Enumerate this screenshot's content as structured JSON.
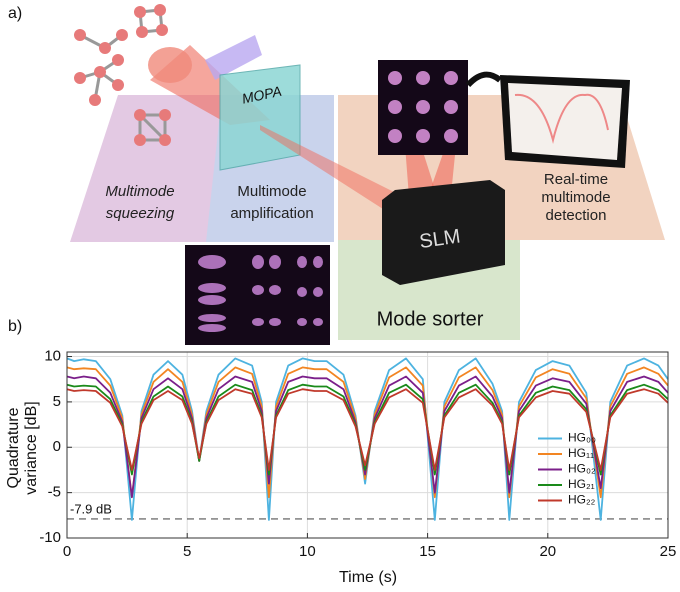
{
  "diagram": {
    "panel_label": "a)",
    "labels": {
      "mopa": "MOPA",
      "squeezing": [
        "Multimode",
        "squeezing"
      ],
      "amplification": [
        "Multimode",
        "amplification"
      ],
      "detection": [
        "Real-time",
        "multimode",
        "detection"
      ],
      "slm": "SLM",
      "sorter": "Mode sorter"
    }
  },
  "chart_data": {
    "type": "line",
    "panel_label": "b)",
    "x_label": "Time (s)",
    "y_label": [
      "Quadrature",
      "variance [dB]"
    ],
    "x": [
      0,
      0.3,
      0.7,
      1.2,
      1.8,
      2.3,
      2.7,
      3.1,
      3.6,
      4.2,
      4.8,
      5.2,
      5.5,
      5.8,
      6.3,
      7.0,
      7.7,
      8.1,
      8.4,
      8.7,
      9.2,
      9.8,
      10.3,
      10.8,
      11.5,
      12.0,
      12.4,
      12.8,
      13.4,
      14.1,
      14.8,
      15.3,
      15.7,
      16.3,
      17.0,
      17.7,
      18.1,
      18.4,
      18.8,
      19.5,
      20.2,
      20.9,
      21.6,
      22.2,
      22.6,
      23.3,
      24.0,
      24.6,
      25.0
    ],
    "series": [
      {
        "name": "HG₀₀",
        "color": "#4db3e0",
        "values": [
          9.8,
          9.5,
          9.7,
          9.5,
          7.5,
          3.5,
          -8,
          4,
          8,
          9.5,
          8,
          4,
          -1.5,
          4,
          8,
          9.8,
          9,
          5,
          -8,
          5,
          9,
          9.8,
          9.5,
          9.5,
          8,
          3.5,
          -4,
          4,
          8.5,
          9.8,
          7.5,
          -8,
          5,
          8.5,
          9.8,
          7,
          4,
          -8,
          5,
          8.5,
          9.5,
          9,
          6,
          -8,
          5,
          9,
          9.8,
          9,
          7.5
        ]
      },
      {
        "name": "HG₁₁",
        "color": "#f28522",
        "values": [
          8.8,
          8.6,
          8.7,
          8.6,
          6.8,
          3.2,
          -5.5,
          3.6,
          7.2,
          8.6,
          7.2,
          3.6,
          -1.5,
          3.6,
          7.2,
          8.8,
          8.1,
          4.5,
          -5.5,
          4.5,
          8.1,
          8.8,
          8.6,
          8.6,
          7.2,
          3.2,
          -3.5,
          3.6,
          7.7,
          8.8,
          6.8,
          -5.5,
          4.5,
          7.7,
          8.8,
          6.3,
          3.6,
          -5.5,
          4.5,
          7.7,
          8.6,
          8.1,
          5.4,
          -5.5,
          4.5,
          8.1,
          8.8,
          8.1,
          6.8
        ]
      },
      {
        "name": "HG₀₂",
        "color": "#7b1f8a",
        "values": [
          7.8,
          7.6,
          7.8,
          7.6,
          6,
          2.8,
          -5.5,
          3.2,
          6.4,
          7.6,
          6.4,
          3.2,
          -1.5,
          3.2,
          6.4,
          7.8,
          7.2,
          4,
          -4,
          4,
          7.2,
          7.8,
          7.6,
          7.6,
          6.4,
          2.8,
          -3,
          3.2,
          6.8,
          7.8,
          6,
          -5,
          4,
          6.8,
          7.8,
          5.6,
          3.2,
          -5,
          4,
          6.8,
          7.6,
          7.2,
          4.8,
          -4.5,
          4,
          7.2,
          7.8,
          7.2,
          6
        ]
      },
      {
        "name": "HG₂₁",
        "color": "#1a8a1a",
        "values": [
          6.9,
          6.7,
          6.8,
          6.7,
          5.3,
          2.5,
          -3,
          2.8,
          5.6,
          6.7,
          5.6,
          2.8,
          -1.5,
          2.8,
          5.6,
          6.9,
          6.3,
          3.5,
          -3,
          3.5,
          6.3,
          6.9,
          6.7,
          6.7,
          5.6,
          2.5,
          -2.5,
          2.8,
          6,
          6.9,
          5.3,
          -3,
          3.5,
          6,
          6.9,
          4.9,
          2.8,
          -3,
          3.5,
          6,
          6.7,
          6.3,
          4.2,
          -3,
          3.5,
          6.3,
          6.9,
          6.3,
          5.3
        ]
      },
      {
        "name": "HG₂₂",
        "color": "#c0392b",
        "values": [
          6.4,
          6.2,
          6.3,
          6.2,
          4.9,
          2.3,
          -2.5,
          2.6,
          5.2,
          6.2,
          5.2,
          2.6,
          -1.2,
          2.6,
          5.2,
          6.4,
          5.9,
          3.3,
          -2.5,
          3.3,
          5.9,
          6.4,
          6.2,
          6.2,
          5.2,
          2.3,
          -2,
          2.6,
          5.5,
          6.4,
          4.9,
          -2.5,
          3.3,
          5.5,
          6.4,
          4.6,
          2.6,
          -2.5,
          3.3,
          5.5,
          6.2,
          5.9,
          3.9,
          -2.5,
          3.3,
          5.9,
          6.4,
          5.9,
          4.9
        ]
      }
    ],
    "xlim": [
      0,
      25
    ],
    "ylim": [
      -10,
      10.5
    ],
    "xticks": [
      0,
      5,
      10,
      15,
      20,
      25
    ],
    "yticks": [
      -10,
      -5,
      0,
      5,
      10
    ],
    "grid": true,
    "legend": "lower right",
    "reference_line": {
      "value": -7.9,
      "label": "-7.9 dB",
      "color": "#555555"
    }
  }
}
